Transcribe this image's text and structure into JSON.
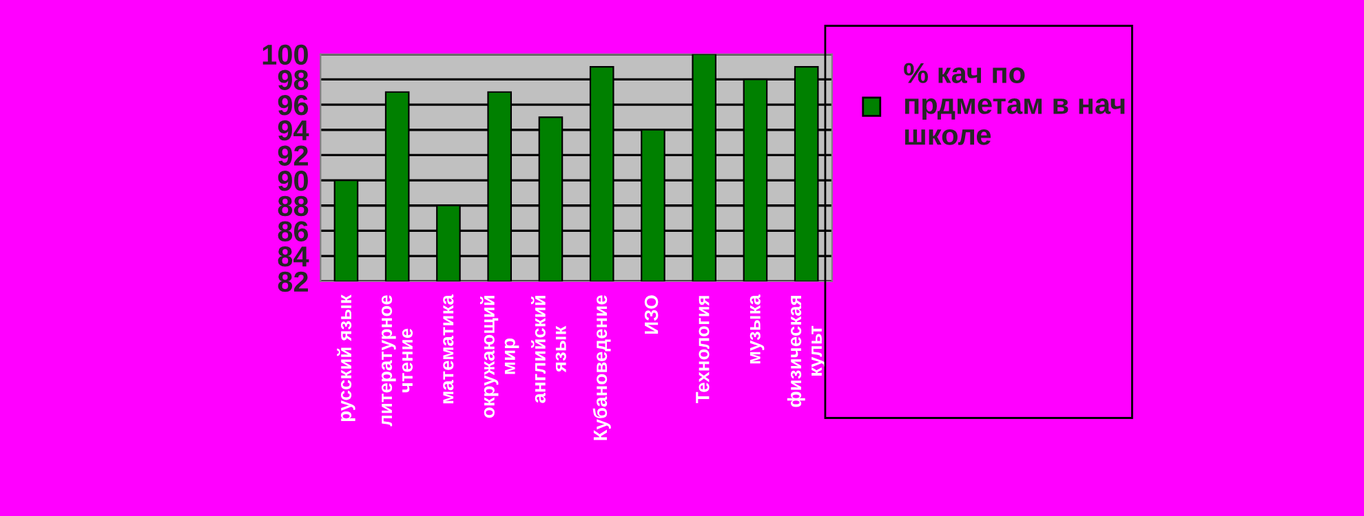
{
  "chart_data": {
    "type": "bar",
    "categories": [
      "русский язык",
      "литературное\nчтение",
      "математика",
      "окружающий\nмир",
      "английский\nязык",
      "Кубановедение",
      "ИЗО",
      "Технология",
      "музыка",
      "физическая\nкульт"
    ],
    "series": [
      {
        "name": "% кач по\nпрдметам в нач\nшколе",
        "color": "#008000",
        "values": [
          90,
          97,
          88,
          97,
          95,
          99,
          94,
          100,
          98,
          99
        ]
      }
    ],
    "ylim": [
      82,
      100
    ],
    "yticks": [
      82,
      84,
      86,
      88,
      90,
      92,
      94,
      96,
      98,
      100
    ],
    "grid": "y",
    "legend": "right"
  }
}
